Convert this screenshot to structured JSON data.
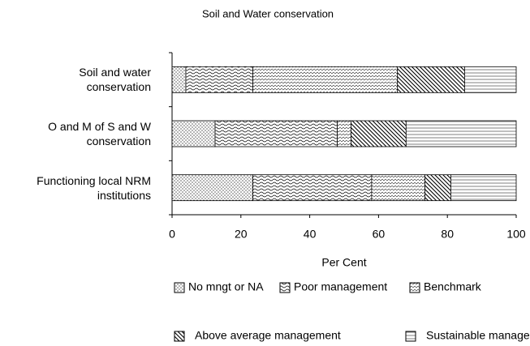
{
  "chart_data": {
    "type": "stacked-barh",
    "title": "Soil and Water conservation",
    "categories": [
      "Soil and water conservation",
      "O and M of S and W conservation",
      "Functioning local NRM institutions"
    ],
    "series": [
      {
        "name": "No mngt or NA",
        "color": "#000000",
        "pattern": "dots",
        "values": [
          4,
          12.5,
          23.5
        ]
      },
      {
        "name": "Poor management",
        "color": "#000000",
        "pattern": "waves",
        "values": [
          19.5,
          35.5,
          34.5
        ]
      },
      {
        "name": "Benchmark",
        "color": "#000000",
        "pattern": "dashes",
        "values": [
          42,
          4,
          15.5
        ]
      },
      {
        "name": "Above average management",
        "color": "#000000",
        "pattern": "hatch",
        "values": [
          19.5,
          16,
          7.5
        ]
      },
      {
        "name": "Sustainable management",
        "color": "#000000",
        "pattern": "lines",
        "values": [
          15,
          32,
          19
        ]
      }
    ],
    "xlabel": "Per Cent",
    "xlim": [
      0,
      100
    ],
    "xticks": [
      0,
      20,
      40,
      60,
      80,
      100
    ]
  }
}
